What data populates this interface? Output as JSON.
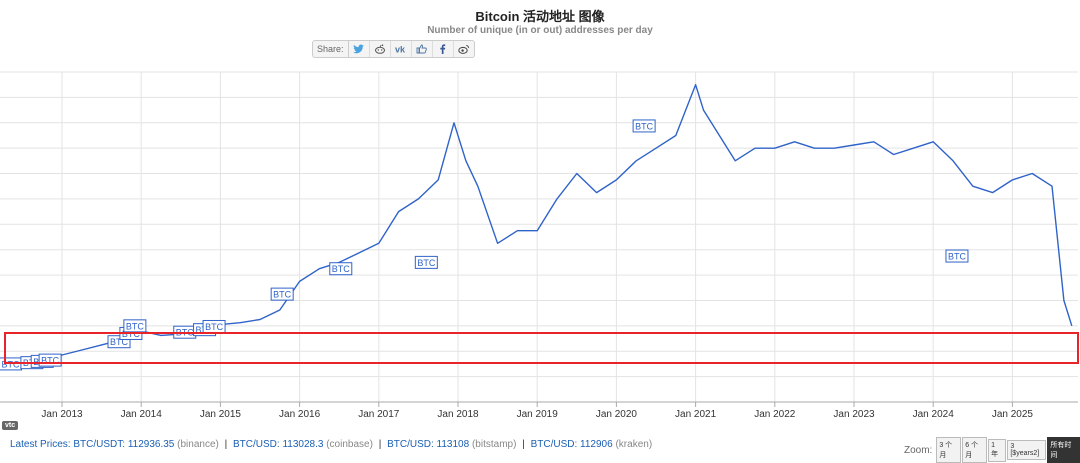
{
  "chart_data": {
    "type": "line",
    "title": "Bitcoin 活动地址 图像",
    "subtitle": "Number of unique (in or out) addresses per day",
    "x_ticks": [
      "Jan 2013",
      "Jan 2014",
      "Jan 2015",
      "Jan 2016",
      "Jan 2017",
      "Jan 2018",
      "Jan 2019",
      "Jan 2020",
      "Jan 2021",
      "Jan 2022",
      "Jan 2023",
      "Jan 2024",
      "Jan 2025"
    ],
    "y_scale": "log",
    "grid": true,
    "series_color": "#2f63c9",
    "series": [
      {
        "x": [
          2012.25,
          2012.5,
          2012.75,
          2013.0,
          2013.25,
          2013.5,
          2013.75,
          2013.9,
          2014.0,
          2014.25,
          2014.5,
          2014.75,
          2015.0,
          2015.25,
          2015.5,
          2015.75,
          2016.0,
          2016.25,
          2016.5,
          2016.75,
          2017.0,
          2017.25,
          2017.5,
          2017.75,
          2017.95,
          2018.1,
          2018.25,
          2018.5,
          2018.75,
          2019.0,
          2019.25,
          2019.5,
          2019.75,
          2020.0,
          2020.25,
          2020.5,
          2020.75,
          2021.0,
          2021.1,
          2021.25,
          2021.5,
          2021.75,
          2022.0,
          2022.25,
          2022.5,
          2022.75,
          2023.0,
          2023.25,
          2023.5,
          2023.75,
          2024.0,
          2024.25,
          2024.5,
          2024.75,
          2025.0,
          2025.25,
          2025.5,
          2025.65,
          2025.75
        ],
        "y": [
          0.62,
          0.66,
          0.7,
          0.74,
          0.82,
          0.9,
          0.98,
          1.0,
          1.12,
          1.05,
          1.07,
          1.1,
          1.22,
          1.25,
          1.3,
          1.45,
          1.9,
          2.1,
          2.2,
          2.35,
          2.5,
          3.0,
          3.2,
          3.5,
          4.4,
          3.8,
          3.4,
          2.5,
          2.7,
          2.7,
          3.2,
          3.6,
          3.3,
          3.5,
          3.8,
          4.0,
          4.2,
          5.0,
          4.6,
          4.3,
          3.8,
          4.0,
          4.0,
          4.1,
          4.0,
          4.0,
          4.05,
          4.1,
          3.9,
          4.0,
          4.1,
          3.8,
          3.4,
          3.3,
          3.5,
          3.6,
          3.4,
          1.6,
          1.2
        ]
      }
    ],
    "annotation_flags": [
      {
        "x": 2012.35,
        "y": 0.6,
        "label": "BTC"
      },
      {
        "x": 2012.62,
        "y": 0.62,
        "label": "BTC"
      },
      {
        "x": 2012.75,
        "y": 0.64,
        "label": "BTC"
      },
      {
        "x": 2012.85,
        "y": 0.66,
        "label": "BTC"
      },
      {
        "x": 2013.72,
        "y": 0.95,
        "label": "BTC"
      },
      {
        "x": 2013.87,
        "y": 1.08,
        "label": "BTC"
      },
      {
        "x": 2013.92,
        "y": 1.2,
        "label": "BTC"
      },
      {
        "x": 2014.55,
        "y": 1.1,
        "label": "BTC"
      },
      {
        "x": 2014.8,
        "y": 1.14,
        "label": "BTC"
      },
      {
        "x": 2014.92,
        "y": 1.19,
        "label": "BTC"
      },
      {
        "x": 2015.78,
        "y": 1.7,
        "label": "BTC"
      },
      {
        "x": 2016.52,
        "y": 2.1,
        "label": "BTC"
      },
      {
        "x": 2017.6,
        "y": 2.2,
        "label": "BTC"
      },
      {
        "x": 2020.35,
        "y": 4.35,
        "label": "BTC"
      },
      {
        "x": 2024.3,
        "y": 2.3,
        "label": "BTC"
      }
    ]
  },
  "share": {
    "label": "Share:",
    "icons": [
      "twitter-icon",
      "reddit-icon",
      "vk-icon",
      "like-icon",
      "facebook-icon",
      "weibo-icon"
    ]
  },
  "badge": "vtc",
  "footer": {
    "prefix": "Latest Prices:",
    "prices": [
      {
        "pair": "BTC/USDT:",
        "value": "112936.35",
        "exchange": "(binance)"
      },
      {
        "pair": "BTC/USD:",
        "value": "113028.3",
        "exchange": "(coinbase)"
      },
      {
        "pair": "BTC/USD:",
        "value": "113108",
        "exchange": "(bitstamp)"
      },
      {
        "pair": "BTC/USD:",
        "value": "112906",
        "exchange": "(kraken)"
      }
    ]
  },
  "zoom": {
    "label": "Zoom:",
    "buttons": [
      "3 个月",
      "6 个月",
      "1 年",
      "3 [$years2]",
      "所有时间"
    ],
    "active_index": 4
  },
  "highlight_box_color": "#e8232a"
}
